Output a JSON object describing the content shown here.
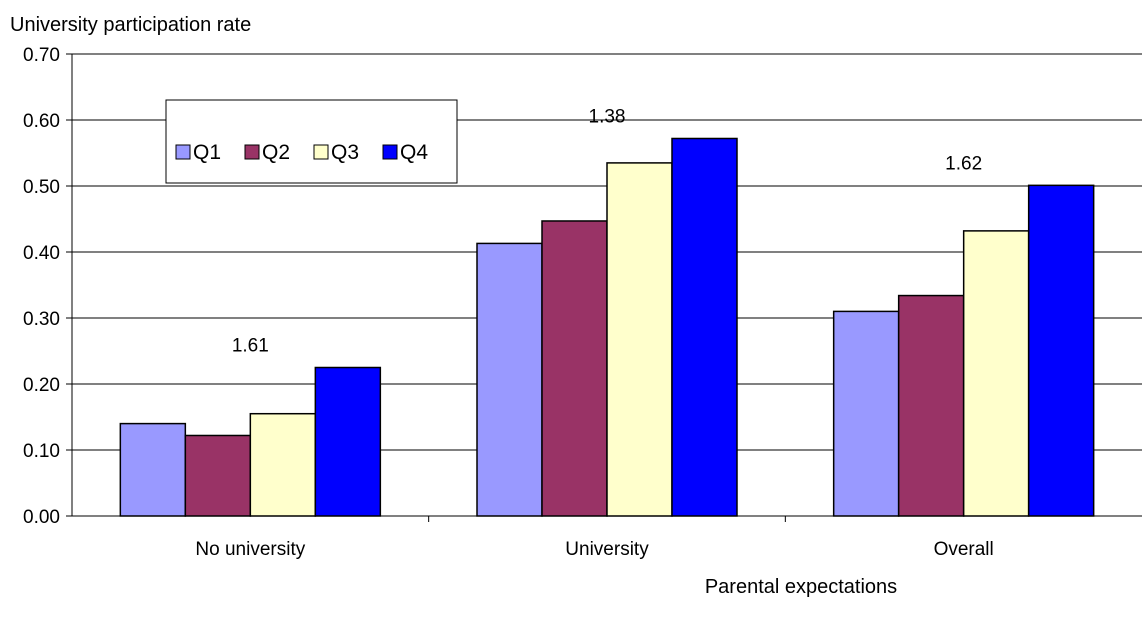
{
  "chart_data": {
    "type": "bar",
    "ylabel": "University participation rate",
    "xlabel": "Parental expectations",
    "categories": [
      "No university",
      "University",
      "Overall"
    ],
    "series": [
      {
        "name": "Q1",
        "color": "#9999ff",
        "values": [
          0.14,
          0.413,
          0.31
        ]
      },
      {
        "name": "Q2",
        "color": "#993366",
        "values": [
          0.122,
          0.447,
          0.334
        ]
      },
      {
        "name": "Q3",
        "color": "#ffffcc",
        "values": [
          0.155,
          0.535,
          0.432
        ]
      },
      {
        "name": "Q4",
        "color": "#0000ff",
        "values": [
          0.225,
          0.572,
          0.501
        ]
      }
    ],
    "annotations": [
      "1.61",
      "1.38",
      "1.62"
    ],
    "ylim": [
      0,
      0.7
    ],
    "yticks": [
      0,
      0.1,
      0.2,
      0.3,
      0.4,
      0.5,
      0.6,
      0.7
    ],
    "ytick_labels": [
      "0.00",
      "0.10",
      "0.20",
      "0.30",
      "0.40",
      "0.50",
      "0.60",
      "0.70"
    ],
    "grid": true,
    "legend_position": "top-left"
  }
}
